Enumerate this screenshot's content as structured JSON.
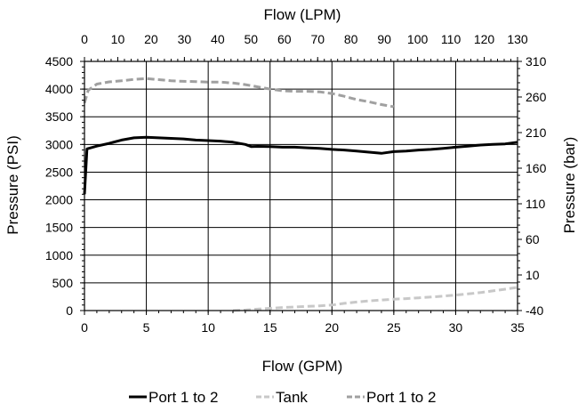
{
  "chart_data": {
    "type": "line",
    "title": "",
    "xlabel": "Flow (GPM)",
    "x2label": "Flow (LPM)",
    "ylabel": "Pressure (PSI)",
    "y2label": "Pressure (bar)",
    "xlim": [
      0,
      35
    ],
    "x2lim": [
      0,
      130
    ],
    "ylim": [
      0,
      4500
    ],
    "y2lim": [
      -40,
      310
    ],
    "xticks": [
      "0",
      "5",
      "10",
      "15",
      "20",
      "25",
      "30",
      "35"
    ],
    "x2ticks": [
      "0",
      "10",
      "20",
      "30",
      "40",
      "50",
      "60",
      "70",
      "80",
      "90",
      "100",
      "110",
      "120",
      "130"
    ],
    "yticks": [
      "0",
      "500",
      "1000",
      "1500",
      "2000",
      "2500",
      "3000",
      "3500",
      "4000",
      "4500"
    ],
    "y2ticks": [
      "-40",
      "10",
      "60",
      "110",
      "160",
      "210",
      "260",
      "310"
    ],
    "grid": true,
    "legend_position": "bottom",
    "series": [
      {
        "name": "Port 1 to 2",
        "color": "#000000",
        "style": "solid",
        "x": [
          0,
          0.2,
          1,
          2,
          3,
          4,
          5,
          6,
          7,
          8,
          9,
          10,
          11,
          12,
          13,
          13.5,
          14,
          15,
          16,
          17,
          18,
          19,
          20,
          21,
          22,
          23,
          24,
          25,
          26,
          27,
          28,
          29,
          30,
          31,
          32,
          33,
          34,
          35
        ],
        "y": [
          2100,
          2920,
          2970,
          3020,
          3080,
          3120,
          3130,
          3120,
          3110,
          3100,
          3080,
          3070,
          3060,
          3040,
          3000,
          2960,
          2965,
          2960,
          2950,
          2950,
          2940,
          2930,
          2910,
          2900,
          2880,
          2860,
          2840,
          2870,
          2880,
          2900,
          2910,
          2930,
          2950,
          2970,
          2990,
          3000,
          3010,
          3040
        ]
      },
      {
        "name": "Tank",
        "color": "#c8c8c8",
        "style": "dashed",
        "x": [
          12,
          13,
          14,
          15,
          16,
          17,
          18,
          19,
          20,
          21,
          22,
          23,
          24,
          25,
          26,
          27,
          28,
          29,
          30,
          31,
          32,
          33,
          34,
          35
        ],
        "y": [
          0,
          10,
          25,
          40,
          55,
          65,
          75,
          85,
          100,
          130,
          155,
          175,
          190,
          205,
          215,
          230,
          245,
          260,
          280,
          300,
          325,
          355,
          385,
          420
        ]
      },
      {
        "name": "Port 1 to 2",
        "color": "#a0a0a0",
        "style": "dashed",
        "x": [
          0,
          0.3,
          1,
          2,
          3,
          4,
          5,
          6,
          7,
          8,
          9,
          10,
          11,
          12,
          13,
          14,
          15,
          16,
          17,
          18,
          19,
          20,
          21,
          22,
          23,
          24,
          25
        ],
        "y": [
          3750,
          3980,
          4090,
          4130,
          4150,
          4175,
          4190,
          4170,
          4150,
          4140,
          4135,
          4125,
          4125,
          4110,
          4080,
          4040,
          4000,
          3970,
          3960,
          3960,
          3950,
          3920,
          3870,
          3810,
          3770,
          3720,
          3680
        ]
      }
    ]
  }
}
